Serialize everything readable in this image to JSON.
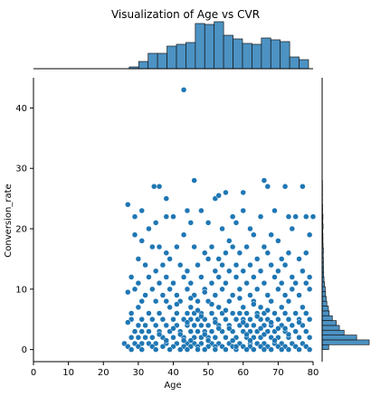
{
  "colors": {
    "accent": "#1f77b4",
    "edge": "#ffffff",
    "bar_edge": "#1a1a1a",
    "axis": "#000000"
  },
  "chart_data": {
    "type": "scatter",
    "title": "Visualization of Age vs CVR",
    "xlabel": "Age",
    "ylabel": "Conversion_rate",
    "xlim": [
      0,
      80
    ],
    "ylim": [
      -2,
      45
    ],
    "xticks": [
      0,
      10,
      20,
      30,
      40,
      50,
      60,
      70,
      80
    ],
    "yticks": [
      0,
      10,
      20,
      30,
      40
    ],
    "grid": false,
    "marginal_x_histogram": {
      "bin_edges": [
        22,
        24.7,
        27.4,
        30.1,
        32.8,
        35.5,
        38.2,
        40.9,
        43.6,
        46.3,
        49,
        51.7,
        54.4,
        57.1,
        59.8,
        62.5,
        65.2,
        67.9,
        70.6,
        73.3,
        76,
        78.7
      ],
      "counts": [
        0,
        0,
        2,
        8,
        17,
        17,
        25,
        27,
        29,
        50,
        49,
        52,
        37,
        33,
        28,
        27,
        34,
        32,
        30,
        13,
        10,
        4
      ]
    },
    "marginal_y_histogram": {
      "bin_edges": [
        0,
        0.8,
        1.6,
        2.4,
        3.2,
        4,
        4.8,
        5.6,
        6.4,
        7.2,
        8,
        8.8,
        9.6,
        10.4,
        11.2,
        12,
        12.8,
        13.6,
        14.4,
        15.2,
        16,
        16.8,
        17.6,
        18.4,
        19.2,
        20,
        20.8,
        21.6,
        22.4,
        23.2,
        24,
        24.8,
        25.6,
        26.4,
        27.2,
        28
      ],
      "counts": [
        42,
        300,
        220,
        140,
        110,
        90,
        65,
        45,
        40,
        30,
        26,
        22,
        20,
        15,
        12,
        10,
        9,
        8,
        8,
        7,
        8,
        6,
        5,
        5,
        4,
        6,
        4,
        5,
        3,
        3,
        2,
        2,
        2,
        2,
        2,
        1
      ]
    },
    "points": [
      [
        43,
        43.0
      ],
      [
        46,
        28.0
      ],
      [
        66,
        28.0
      ],
      [
        36,
        27.0
      ],
      [
        34.5,
        27.0
      ],
      [
        67,
        27.0
      ],
      [
        77,
        27.0
      ],
      [
        55,
        26.0
      ],
      [
        60,
        26.0
      ],
      [
        72,
        27.0
      ],
      [
        52,
        25.0
      ],
      [
        38,
        25.0
      ],
      [
        53,
        25.5
      ],
      [
        31,
        23.0
      ],
      [
        29,
        22.0
      ],
      [
        40,
        22.0
      ],
      [
        27,
        24.0
      ],
      [
        33,
        20.0
      ],
      [
        35,
        21.0
      ],
      [
        38,
        22.0
      ],
      [
        44,
        23.0
      ],
      [
        48,
        23.0
      ],
      [
        57,
        22.0
      ],
      [
        58,
        21.0
      ],
      [
        60,
        23.0
      ],
      [
        62,
        20.0
      ],
      [
        65,
        22.0
      ],
      [
        69,
        23.0
      ],
      [
        73,
        22.0
      ],
      [
        75,
        22.0
      ],
      [
        78,
        22.0
      ],
      [
        80,
        22.0
      ],
      [
        45,
        21.0
      ],
      [
        50,
        21.0
      ],
      [
        54,
        20.0
      ],
      [
        56,
        18.0
      ],
      [
        63,
        19.0
      ],
      [
        68,
        19.0
      ],
      [
        70,
        18.0
      ],
      [
        74,
        20.0
      ],
      [
        79,
        19.0
      ],
      [
        29,
        19.0
      ],
      [
        31,
        18.0
      ],
      [
        34,
        17.0
      ],
      [
        36,
        17.0
      ],
      [
        38,
        16.0
      ],
      [
        41,
        17.0
      ],
      [
        43,
        19.0
      ],
      [
        46,
        17.0
      ],
      [
        49,
        16.0
      ],
      [
        51,
        17.0
      ],
      [
        53,
        15.0
      ],
      [
        55,
        16.0
      ],
      [
        57,
        17.0
      ],
      [
        59,
        16.0
      ],
      [
        61,
        17.0
      ],
      [
        64,
        15.0
      ],
      [
        66,
        17.0
      ],
      [
        67,
        16.0
      ],
      [
        71,
        15.0
      ],
      [
        73,
        16.0
      ],
      [
        76,
        15.0
      ],
      [
        78,
        16.0
      ],
      [
        30,
        15.0
      ],
      [
        32,
        14.0
      ],
      [
        35,
        13.0
      ],
      [
        37,
        14.0
      ],
      [
        39,
        15.0
      ],
      [
        42,
        14.0
      ],
      [
        44,
        13.0
      ],
      [
        47,
        14.0
      ],
      [
        50,
        15.0
      ],
      [
        52,
        13.0
      ],
      [
        54,
        14.0
      ],
      [
        56,
        13.0
      ],
      [
        58,
        14.0
      ],
      [
        60,
        13.0
      ],
      [
        62,
        14.0
      ],
      [
        65,
        13.0
      ],
      [
        68,
        14.0
      ],
      [
        70,
        13.0
      ],
      [
        72,
        14.0
      ],
      [
        74,
        12.0
      ],
      [
        77,
        13.0
      ],
      [
        79,
        12.0
      ],
      [
        28,
        12.0
      ],
      [
        30,
        11.0
      ],
      [
        33,
        12.0
      ],
      [
        36,
        11.0
      ],
      [
        38,
        12.0
      ],
      [
        40,
        11.0
      ],
      [
        43,
        12.0
      ],
      [
        45,
        11.0
      ],
      [
        48,
        12.0
      ],
      [
        51,
        11.0
      ],
      [
        53,
        12.0
      ],
      [
        55,
        11.0
      ],
      [
        58,
        12.0
      ],
      [
        61,
        11.0
      ],
      [
        63,
        12.0
      ],
      [
        66,
        11.0
      ],
      [
        69,
        12.0
      ],
      [
        71,
        11.0
      ],
      [
        75,
        11.0
      ],
      [
        78,
        11.0
      ],
      [
        29,
        10.0
      ],
      [
        32,
        9.0
      ],
      [
        34,
        10.0
      ],
      [
        37,
        9.0
      ],
      [
        39,
        10.0
      ],
      [
        41,
        9.0
      ],
      [
        44,
        10.0
      ],
      [
        46,
        9.0
      ],
      [
        49,
        10.0
      ],
      [
        50,
        8.0
      ],
      [
        52,
        9.0
      ],
      [
        54,
        10.0
      ],
      [
        57,
        9.0
      ],
      [
        59,
        10.0
      ],
      [
        62,
        9.0
      ],
      [
        64,
        10.0
      ],
      [
        67,
        9.0
      ],
      [
        70,
        10.0
      ],
      [
        72,
        9.0
      ],
      [
        74,
        10.0
      ],
      [
        76,
        9.0
      ],
      [
        79,
        10.0
      ],
      [
        27,
        9.5
      ],
      [
        31,
        8.0
      ],
      [
        35,
        8.0
      ],
      [
        38,
        8.0
      ],
      [
        42,
        8.0
      ],
      [
        45,
        7.0
      ],
      [
        47,
        8.0
      ],
      [
        53,
        7.0
      ],
      [
        56,
        8.0
      ],
      [
        60,
        7.0
      ],
      [
        63,
        8.0
      ],
      [
        65,
        7.0
      ],
      [
        68,
        8.0
      ],
      [
        71,
        7.0
      ],
      [
        73,
        8.0
      ],
      [
        77,
        7.0
      ],
      [
        28,
        6.0
      ],
      [
        30,
        7.0
      ],
      [
        33,
        6.0
      ],
      [
        36,
        6.0
      ],
      [
        39,
        7.0
      ],
      [
        41,
        6.0
      ],
      [
        44,
        6.0
      ],
      [
        46,
        6.0
      ],
      [
        48,
        6.0
      ],
      [
        51,
        6.0
      ],
      [
        54,
        6.0
      ],
      [
        57,
        6.0
      ],
      [
        59,
        6.0
      ],
      [
        61,
        6.0
      ],
      [
        64,
        6.0
      ],
      [
        66,
        6.0
      ],
      [
        69,
        6.0
      ],
      [
        72,
        6.0
      ],
      [
        75,
        6.0
      ],
      [
        78,
        6.0
      ],
      [
        28,
        5.0
      ],
      [
        31,
        5.0
      ],
      [
        34,
        5.0
      ],
      [
        37,
        5.0
      ],
      [
        40,
        5.0
      ],
      [
        43,
        5.0
      ],
      [
        45,
        5.0
      ],
      [
        47,
        5.0
      ],
      [
        49,
        5.0
      ],
      [
        52,
        5.0
      ],
      [
        55,
        5.0
      ],
      [
        58,
        5.0
      ],
      [
        60,
        5.0
      ],
      [
        62,
        5.0
      ],
      [
        65,
        5.0
      ],
      [
        67,
        5.0
      ],
      [
        70,
        5.0
      ],
      [
        73,
        5.0
      ],
      [
        76,
        5.0
      ],
      [
        79,
        5.0
      ],
      [
        27,
        4.5
      ],
      [
        30,
        4.0
      ],
      [
        32,
        4.0
      ],
      [
        35,
        4.0
      ],
      [
        38,
        4.0
      ],
      [
        41,
        4.0
      ],
      [
        44,
        4.0
      ],
      [
        46,
        4.0
      ],
      [
        48,
        4.0
      ],
      [
        50,
        4.0
      ],
      [
        53,
        4.0
      ],
      [
        56,
        4.0
      ],
      [
        59,
        4.0
      ],
      [
        61,
        4.0
      ],
      [
        63,
        4.0
      ],
      [
        66,
        4.0
      ],
      [
        68,
        4.0
      ],
      [
        71,
        4.0
      ],
      [
        74,
        4.0
      ],
      [
        77,
        4.0
      ],
      [
        29,
        3.0
      ],
      [
        31,
        3.0
      ],
      [
        33,
        3.0
      ],
      [
        36,
        3.0
      ],
      [
        39,
        3.0
      ],
      [
        42,
        3.0
      ],
      [
        45,
        3.0
      ],
      [
        47,
        3.0
      ],
      [
        49,
        3.0
      ],
      [
        51,
        3.0
      ],
      [
        54,
        3.0
      ],
      [
        57,
        3.0
      ],
      [
        60,
        3.0
      ],
      [
        62,
        3.0
      ],
      [
        64,
        3.0
      ],
      [
        67,
        3.0
      ],
      [
        69,
        3.0
      ],
      [
        72,
        3.0
      ],
      [
        75,
        3.0
      ],
      [
        78,
        3.0
      ],
      [
        26,
        1.0
      ],
      [
        28,
        2.0
      ],
      [
        30,
        2.0
      ],
      [
        32,
        2.0
      ],
      [
        34,
        2.0
      ],
      [
        37,
        2.0
      ],
      [
        40,
        2.0
      ],
      [
        43,
        2.0
      ],
      [
        46,
        2.0
      ],
      [
        48,
        2.0
      ],
      [
        50,
        2.0
      ],
      [
        52,
        2.0
      ],
      [
        55,
        2.0
      ],
      [
        58,
        2.0
      ],
      [
        61,
        2.0
      ],
      [
        63,
        2.0
      ],
      [
        65,
        2.0
      ],
      [
        68,
        2.0
      ],
      [
        70,
        2.0
      ],
      [
        73,
        2.0
      ],
      [
        76,
        2.0
      ],
      [
        79,
        2.0
      ],
      [
        29,
        1.0
      ],
      [
        31,
        1.0
      ],
      [
        33,
        1.0
      ],
      [
        35,
        1.0
      ],
      [
        38,
        1.0
      ],
      [
        41,
        1.0
      ],
      [
        44,
        1.0
      ],
      [
        46,
        1.0
      ],
      [
        48,
        1.0
      ],
      [
        51,
        1.0
      ],
      [
        53,
        1.0
      ],
      [
        56,
        1.0
      ],
      [
        59,
        1.0
      ],
      [
        62,
        1.0
      ],
      [
        64,
        1.0
      ],
      [
        66,
        1.0
      ],
      [
        69,
        1.0
      ],
      [
        71,
        1.0
      ],
      [
        74,
        1.0
      ],
      [
        77,
        1.0
      ],
      [
        27,
        0.5
      ],
      [
        30,
        0.5
      ],
      [
        34,
        0.5
      ],
      [
        37,
        0.5
      ],
      [
        40,
        0.5
      ],
      [
        43,
        0.5
      ],
      [
        45,
        0.5
      ],
      [
        47,
        0.5
      ],
      [
        50,
        0.5
      ],
      [
        52,
        0.5
      ],
      [
        54,
        0.5
      ],
      [
        57,
        0.5
      ],
      [
        60,
        0.5
      ],
      [
        62,
        0.5
      ],
      [
        65,
        0.5
      ],
      [
        67,
        0.5
      ],
      [
        70,
        0.5
      ],
      [
        72,
        0.5
      ],
      [
        75,
        0.5
      ],
      [
        78,
        0.5
      ],
      [
        28,
        0.0
      ],
      [
        31,
        0.0
      ],
      [
        35,
        0.0
      ],
      [
        39,
        0.0
      ],
      [
        42,
        0.0
      ],
      [
        44,
        0.0
      ],
      [
        47,
        0.0
      ],
      [
        49,
        0.0
      ],
      [
        52,
        0.0
      ],
      [
        55,
        0.0
      ],
      [
        58,
        0.0
      ],
      [
        61,
        0.0
      ],
      [
        63,
        0.0
      ],
      [
        66,
        0.0
      ],
      [
        68,
        0.0
      ],
      [
        71,
        0.0
      ],
      [
        73,
        0.0
      ],
      [
        76,
        0.0
      ],
      [
        79,
        0.0
      ],
      [
        38,
        1.5
      ],
      [
        42,
        2.5
      ],
      [
        45,
        1.5
      ],
      [
        49,
        2.5
      ],
      [
        53,
        3.5
      ],
      [
        57,
        1.5
      ],
      [
        61,
        2.5
      ],
      [
        65,
        3.5
      ],
      [
        69,
        1.5
      ],
      [
        73,
        2.5
      ],
      [
        40,
        3.5
      ],
      [
        44,
        4.5
      ],
      [
        48,
        5.5
      ],
      [
        52,
        4.5
      ],
      [
        56,
        3.5
      ],
      [
        60,
        4.5
      ],
      [
        64,
        5.5
      ],
      [
        68,
        4.5
      ],
      [
        72,
        3.5
      ],
      [
        76,
        4.5
      ],
      [
        36,
        2.5
      ],
      [
        47,
        6.5
      ],
      [
        51,
        7.5
      ],
      [
        55,
        6.5
      ],
      [
        59,
        8.5
      ],
      [
        63,
        7.5
      ],
      [
        67,
        6.5
      ],
      [
        41,
        7.5
      ],
      [
        45,
        8.5
      ],
      [
        49,
        9.5
      ],
      [
        43,
        1.5
      ],
      [
        50,
        1.5
      ],
      [
        58,
        0.5
      ],
      [
        62,
        1.5
      ],
      [
        66,
        2.5
      ],
      [
        70,
        3.5
      ]
    ]
  }
}
